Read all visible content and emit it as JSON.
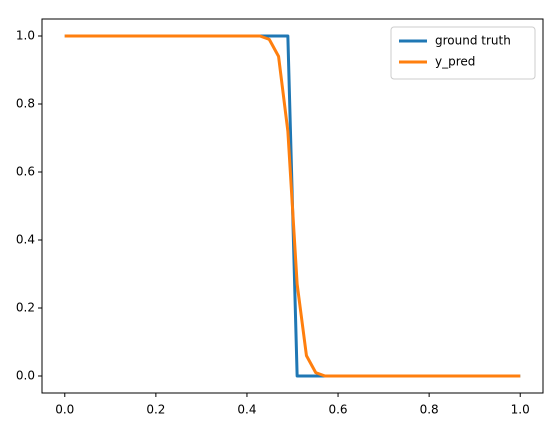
{
  "chart_data": {
    "type": "line",
    "x": [
      0,
      0.4286,
      0.449,
      0.4694,
      0.4898,
      0.5102,
      0.5306,
      0.551,
      0.5714,
      1
    ],
    "series": [
      {
        "name": "ground truth",
        "color": "#1f77b4",
        "values": [
          1,
          1,
          1,
          1,
          1,
          0,
          0,
          0,
          0,
          0
        ]
      },
      {
        "name": "y_pred",
        "color": "#ff7f0e",
        "values": [
          1,
          1,
          0.99,
          0.94,
          0.72,
          0.27,
          0.06,
          0.01,
          0,
          0
        ]
      }
    ],
    "xlim": [
      -0.05,
      1.05
    ],
    "ylim": [
      -0.05,
      1.05
    ],
    "xticks": [
      {
        "value": 0,
        "label": "0.0"
      },
      {
        "value": 0.2,
        "label": "0.2"
      },
      {
        "value": 0.4,
        "label": "0.4"
      },
      {
        "value": 0.6,
        "label": "0.6"
      },
      {
        "value": 0.8,
        "label": "0.8"
      },
      {
        "value": 1,
        "label": "1.0"
      }
    ],
    "yticks": [
      {
        "value": 0,
        "label": "0.0"
      },
      {
        "value": 0.2,
        "label": "0.2"
      },
      {
        "value": 0.4,
        "label": "0.4"
      },
      {
        "value": 0.6,
        "label": "0.6"
      },
      {
        "value": 0.8,
        "label": "0.8"
      },
      {
        "value": 1,
        "label": "1.0"
      }
    ],
    "legend": "upper right",
    "grid": false
  }
}
